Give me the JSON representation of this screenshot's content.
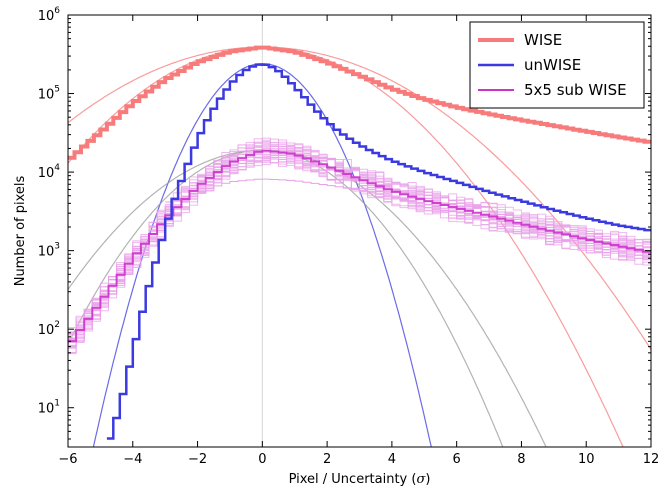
{
  "chart_data": {
    "type": "line",
    "xlabel": "Pixel / Uncertainty (",
    "xlabel_symbol": "σ",
    "xlabel_close": ")",
    "ylabel": "Number of pixels",
    "xlim": [
      -6,
      12
    ],
    "ylim_log10": [
      0.5,
      6.0
    ],
    "y_scale": "log",
    "grid": false,
    "legend_position": "top-right",
    "x_ticks": [
      -6,
      -4,
      -2,
      0,
      2,
      4,
      6,
      8,
      10,
      12
    ],
    "x_tick_labels": [
      "−6",
      "−4",
      "−2",
      "0",
      "2",
      "4",
      "6",
      "8",
      "10",
      "12"
    ],
    "y_ticks_log10": [
      1,
      2,
      3,
      4,
      5,
      6
    ],
    "y_tick_bases": [
      "10",
      "10",
      "10",
      "10",
      "10",
      "10"
    ],
    "y_tick_exponents": [
      "1",
      "2",
      "3",
      "4",
      "5",
      "6"
    ],
    "colors": {
      "wise": "#f77b7b",
      "unwise": "#3a3ae0",
      "sub": "#cc33cc",
      "sub_light": "#e8a0e8",
      "gray": "#999999",
      "zero_line": "#d8d8d8"
    },
    "legend": [
      {
        "label": "WISE",
        "color": "#f77b7b",
        "width": 4
      },
      {
        "label": "unWISE",
        "color": "#3a3ae0",
        "width": 2.5
      },
      {
        "label": "5x5 sub WISE",
        "color": "#cc33cc",
        "width": 2
      }
    ],
    "series": [
      {
        "name": "WISE",
        "x": [
          -6,
          -5,
          -4,
          -3,
          -2,
          -1,
          0,
          1,
          2,
          3,
          4,
          5,
          6,
          7,
          8,
          9,
          10,
          11,
          12
        ],
        "y": [
          14000,
          32000,
          75000,
          150000,
          250000,
          340000,
          390000,
          340000,
          250000,
          170000,
          115000,
          85000,
          67000,
          55000,
          46000,
          39000,
          33000,
          28000,
          24000
        ]
      },
      {
        "name": "unWISE",
        "x": [
          -4.8,
          -4.4,
          -4.0,
          -3.6,
          -3.2,
          -2.8,
          -2.4,
          -2.0,
          -1.6,
          -1.2,
          -0.8,
          -0.4,
          0.0,
          0.4,
          0.8,
          1.2,
          1.6,
          2.0,
          2.4,
          2.8,
          3.2,
          4.0,
          5.0,
          6.0,
          7.0,
          8.0,
          9.0,
          10.0,
          11.0,
          12.0
        ],
        "y": [
          3,
          10,
          50,
          250,
          1000,
          3500,
          10000,
          26000,
          55000,
          100000,
          160000,
          215000,
          240000,
          210000,
          150000,
          100000,
          65000,
          44000,
          32000,
          25000,
          20000,
          14000,
          10000,
          7500,
          5600,
          4300,
          3300,
          2600,
          2100,
          1800
        ]
      },
      {
        "name": "5x5 sub WISE",
        "x": [
          -6,
          -5,
          -4,
          -3,
          -2,
          -1,
          0,
          1,
          2,
          3,
          4,
          5,
          6,
          7,
          8,
          9,
          10,
          11,
          12
        ],
        "y": [
          60,
          220,
          800,
          2500,
          6500,
          13000,
          19000,
          17000,
          12000,
          8200,
          5800,
          4400,
          3500,
          2800,
          2200,
          1750,
          1400,
          1150,
          950
        ]
      }
    ],
    "reference_curves": [
      {
        "name": "wise-gauss-1",
        "peak": 390000,
        "sigma": 2.3,
        "color": "#f77b7b"
      },
      {
        "name": "wise-gauss-2",
        "peak": 390000,
        "sigma": 2.85,
        "color": "#f77b7b"
      },
      {
        "name": "unwise-gauss",
        "peak": 240000,
        "sigma": 1.1,
        "color": "#3a3ae0"
      },
      {
        "name": "sub-gauss-1",
        "peak": 19000,
        "sigma": 1.78,
        "color": "#999999"
      },
      {
        "name": "sub-gauss-2",
        "peak": 19000,
        "sigma": 2.1,
        "color": "#999999"
      }
    ]
  }
}
